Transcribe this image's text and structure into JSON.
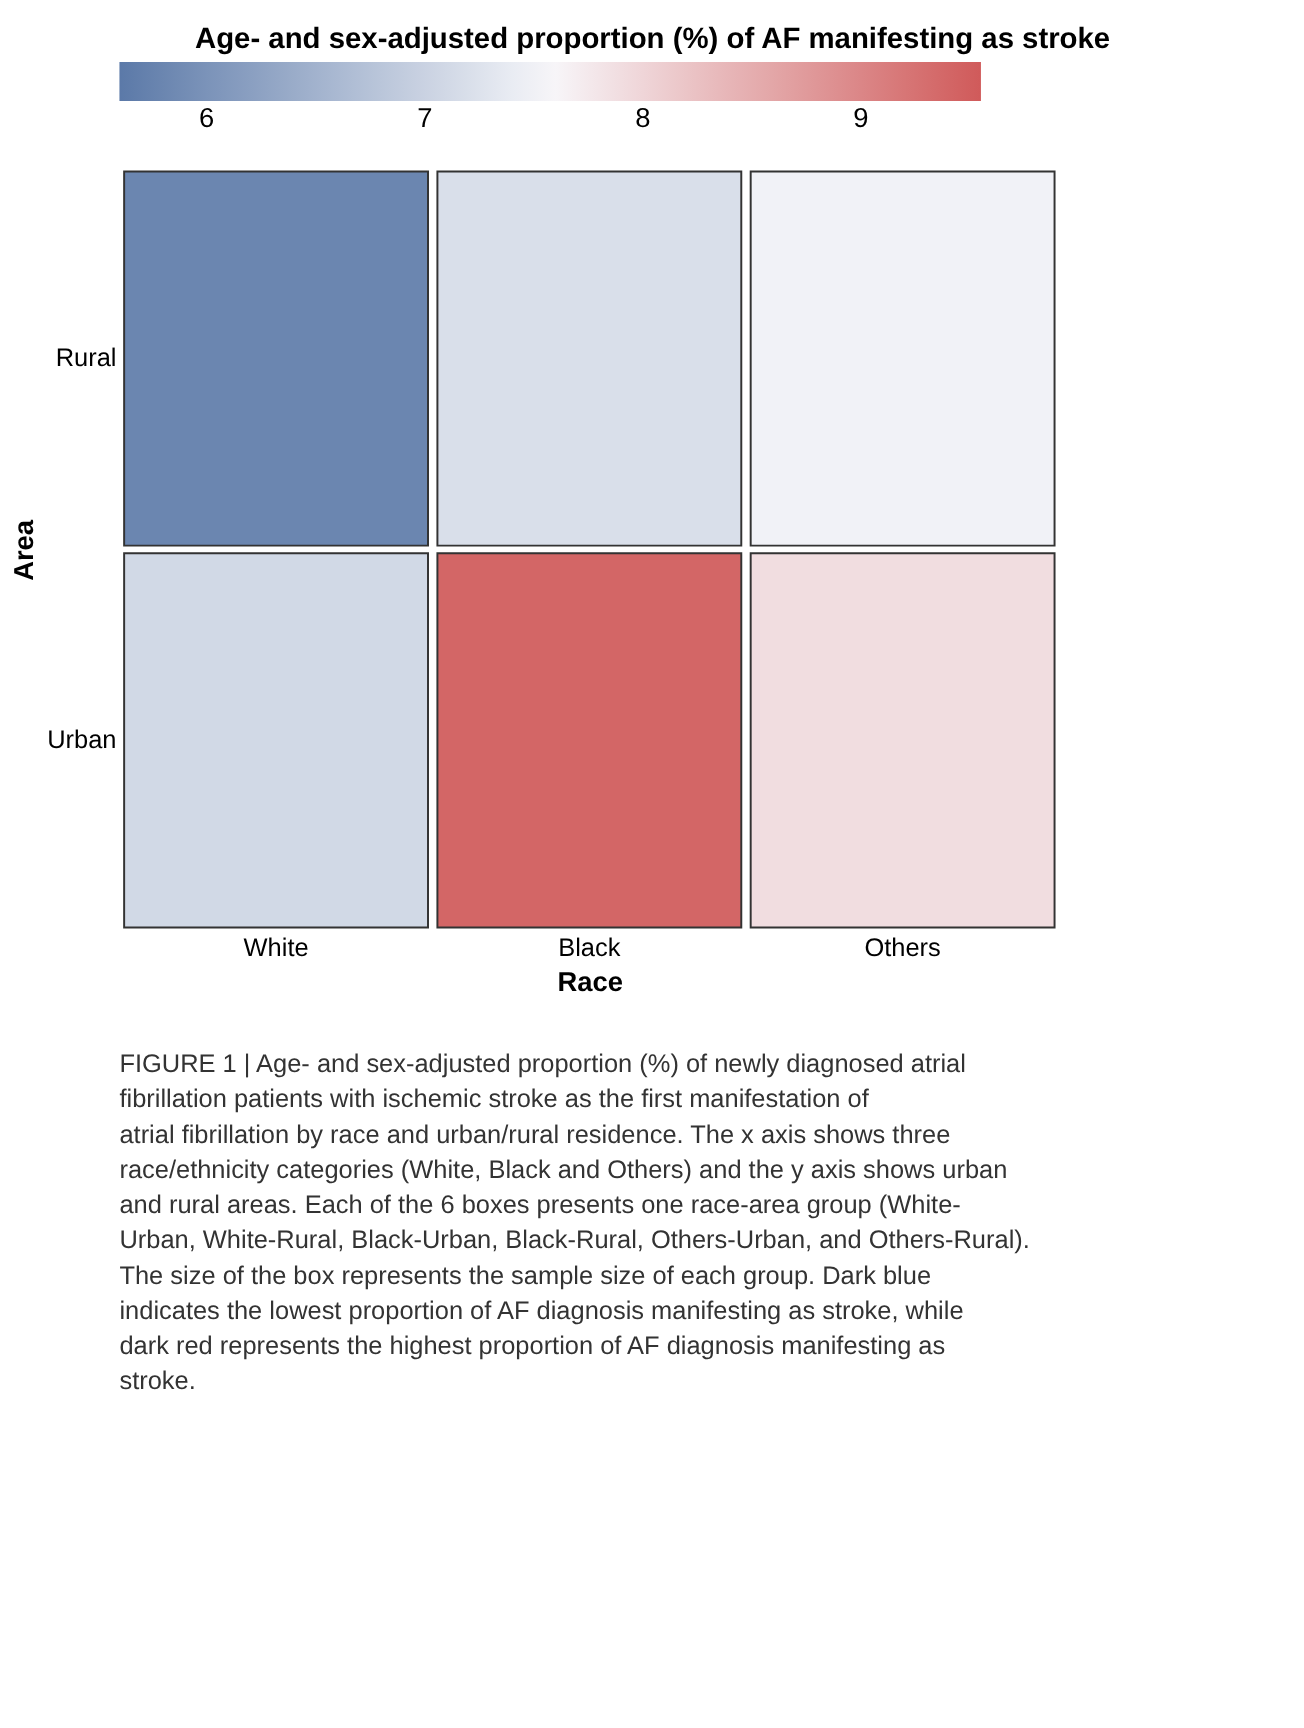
{
  "chart_data": {
    "type": "heatmap",
    "title": "Age- and sex-adjusted proportion (%) of AF manifesting as stroke",
    "xlabel": "Race",
    "ylabel": "Area",
    "categories": [
      "White",
      "Black",
      "Others"
    ],
    "y_categories": [
      "Rural",
      "Urban"
    ],
    "cells": [
      [
        5.8,
        7.2,
        7.5
      ],
      [
        7.1,
        9.4,
        7.9
      ]
    ],
    "clim": [
      5.6,
      9.55
    ],
    "cticks": [
      6,
      7,
      8,
      9
    ],
    "annotations": [
      "FIGURE 1 | Age- and sex-adjusted proportion (%) of newly diagnosed atrial fibrillation patients with ischemic stroke as the first manifestation of atrial fibrillation by race and urban/rural residence. The x axis shows three race/ethnicity categories (White, Black and Others) and the y axis shows urban and rural areas. Each of the 6 boxes presents one race-area group (White-Urban, White-Rural, Black-Urban, Black-Rural, Others-Urban, and Others-Rural). The size of the box represents the sample size of each group. Dark blue indicates the lowest proportion of AF diagnosis manifesting as stroke, while dark red represents the highest proportion of AF diagnosis manifesting as stroke."
    ]
  }
}
